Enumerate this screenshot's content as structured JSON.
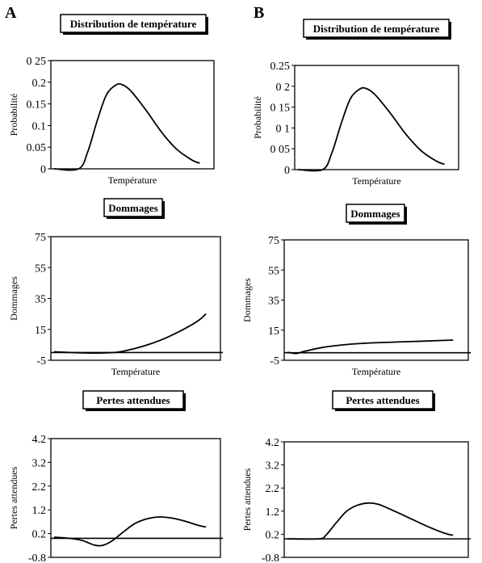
{
  "panels": {
    "left": "A",
    "right": "B"
  },
  "chart_data": [
    {
      "panel": "A",
      "type": "line",
      "title": "Distribution de température",
      "xlabel": "Température",
      "ylabel": "Probabilité",
      "ylim": [
        0,
        0.25
      ],
      "yticks": [
        "0 25",
        "0.2",
        "0.15",
        "0.1",
        "0.05",
        "0"
      ],
      "xlim": [
        0,
        1
      ],
      "grid": false,
      "series": [
        {
          "x": [
            0.0,
            0.16,
            0.22,
            0.28,
            0.34,
            0.4,
            0.44,
            0.5,
            0.6,
            0.7,
            0.8,
            0.9,
            0.95
          ],
          "y": [
            0.0,
            0.0,
            0.04,
            0.11,
            0.17,
            0.193,
            0.195,
            0.18,
            0.135,
            0.085,
            0.045,
            0.02,
            0.013
          ]
        }
      ]
    },
    {
      "panel": "B",
      "type": "line",
      "title": "Distribution de température",
      "xlabel": "Température",
      "ylabel": "Probabilité",
      "ylim": [
        0,
        0.25
      ],
      "yticks": [
        "0.25",
        "0 2",
        "0 15",
        "0 1",
        "0 05",
        "0"
      ],
      "xlim": [
        0,
        1
      ],
      "grid": false,
      "series": [
        {
          "x": [
            0.0,
            0.16,
            0.22,
            0.28,
            0.34,
            0.4,
            0.44,
            0.5,
            0.6,
            0.7,
            0.8,
            0.9,
            0.95
          ],
          "y": [
            0.0,
            0.0,
            0.04,
            0.11,
            0.17,
            0.193,
            0.195,
            0.18,
            0.135,
            0.085,
            0.045,
            0.02,
            0.013
          ]
        }
      ]
    },
    {
      "panel": "A",
      "type": "line",
      "title": "Dommages",
      "xlabel": "Température",
      "ylabel": "Dommages",
      "ylim": [
        -5,
        75
      ],
      "yticks": [
        "75",
        "55",
        "35",
        "15",
        "-5"
      ],
      "xlim": [
        0,
        1
      ],
      "grid": false,
      "zero_line": 0,
      "series": [
        {
          "x": [
            0.0,
            0.1,
            0.2,
            0.3,
            0.4,
            0.5,
            0.6,
            0.7,
            0.8,
            0.9,
            0.95
          ],
          "y": [
            0.5,
            0.0,
            -0.3,
            -0.3,
            0.3,
            2.5,
            5.5,
            9.5,
            14.5,
            20.5,
            25.0
          ]
        }
      ]
    },
    {
      "panel": "B",
      "type": "line",
      "title": "Dommages",
      "xlabel": "Température",
      "ylabel": "Dommages",
      "ylim": [
        -5,
        75
      ],
      "yticks": [
        "75",
        "55",
        "35",
        "15",
        "-5"
      ],
      "xlim": [
        0,
        1
      ],
      "grid": false,
      "zero_line": 0,
      "series": [
        {
          "x": [
            0.0,
            0.05,
            0.1,
            0.2,
            0.3,
            0.4,
            0.5,
            0.6,
            0.7,
            0.8,
            0.9,
            0.95
          ],
          "y": [
            0.3,
            -0.5,
            1.0,
            3.5,
            5.0,
            6.0,
            6.6,
            7.0,
            7.4,
            7.8,
            8.2,
            8.4
          ]
        }
      ]
    },
    {
      "panel": "A",
      "type": "line",
      "title": "Pertes attendues",
      "xlabel": "Température",
      "ylabel": "Pertes attendues",
      "ylim": [
        -0.8,
        4.2
      ],
      "yticks": [
        "4.2",
        "3.2",
        "2.2",
        "1.2",
        "0.2",
        "-0.8"
      ],
      "xlim": [
        0,
        1
      ],
      "grid": false,
      "zero_line": 0,
      "series": [
        {
          "x": [
            0.0,
            0.1,
            0.18,
            0.25,
            0.3,
            0.36,
            0.43,
            0.5,
            0.58,
            0.66,
            0.74,
            0.82,
            0.9,
            0.95
          ],
          "y": [
            0.05,
            0.0,
            -0.1,
            -0.28,
            -0.3,
            -0.12,
            0.25,
            0.6,
            0.82,
            0.9,
            0.85,
            0.72,
            0.55,
            0.48
          ]
        }
      ]
    },
    {
      "panel": "B",
      "type": "line",
      "title": "Pertes attendues",
      "xlabel": "Température",
      "ylabel": "Pertes attendues",
      "ylim": [
        -0.8,
        4.2
      ],
      "yticks": [
        "4.2",
        "3.2",
        "2.2",
        "1.2",
        "0.2",
        "-0.8"
      ],
      "xlim": [
        0,
        1
      ],
      "grid": false,
      "zero_line": 0,
      "series": [
        {
          "x": [
            0.0,
            0.18,
            0.22,
            0.28,
            0.34,
            0.4,
            0.46,
            0.52,
            0.6,
            0.7,
            0.8,
            0.9,
            0.95
          ],
          "y": [
            0.0,
            0.0,
            0.15,
            0.7,
            1.2,
            1.45,
            1.55,
            1.5,
            1.25,
            0.9,
            0.55,
            0.25,
            0.15
          ]
        }
      ]
    }
  ]
}
